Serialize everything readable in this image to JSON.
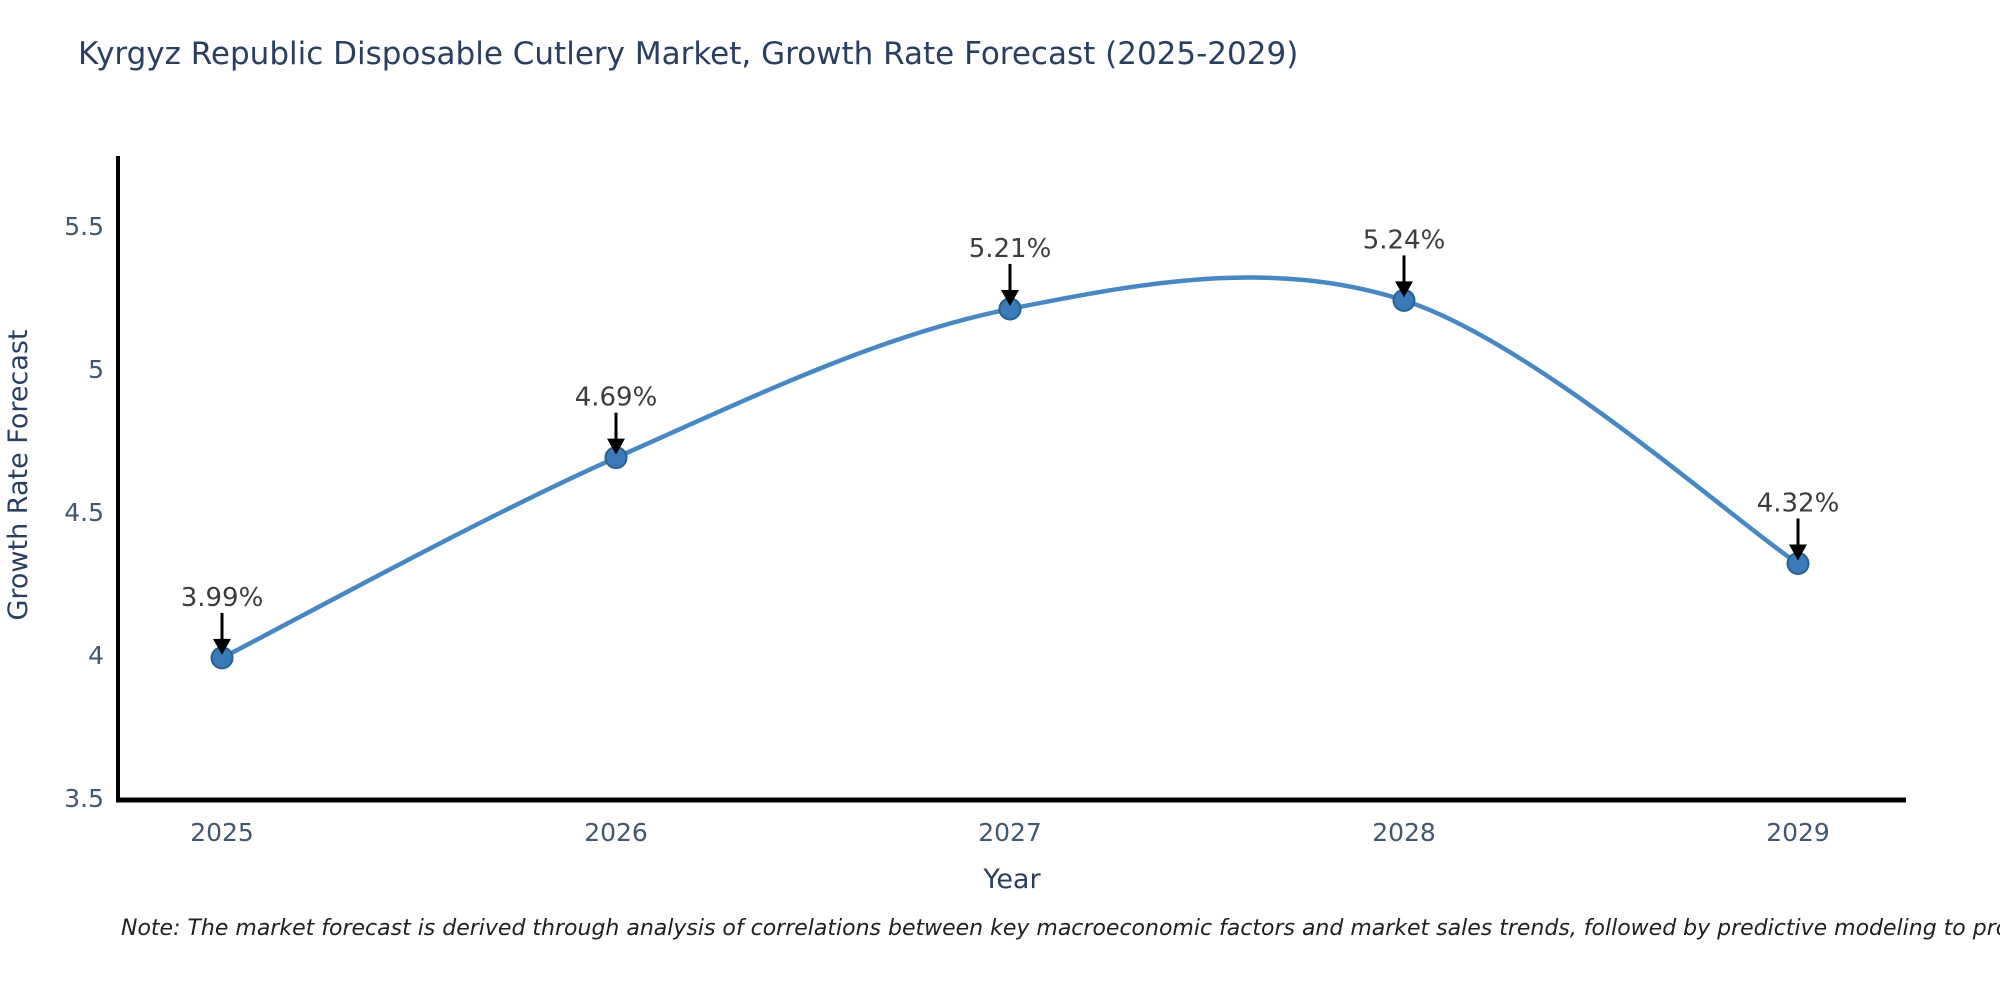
{
  "note": "Note: The market forecast is derived through analysis of correlations between key macroeconomic factors and market sales trends, followed by predictive modeling to project future sales",
  "chart_data": {
    "type": "line",
    "title": "Kyrgyz Republic Disposable Cutlery Market, Growth Rate Forecast (2025-2029)",
    "x": [
      2025,
      2026,
      2027,
      2028,
      2029
    ],
    "values": [
      3.99,
      4.69,
      5.21,
      5.24,
      4.32
    ],
    "point_labels": [
      "3.99%",
      "4.69%",
      "5.21%",
      "5.24%",
      "4.32%"
    ],
    "xlabel": "Year",
    "ylabel": "Growth Rate Forecast",
    "xticks": [
      "2025",
      "2026",
      "2027",
      "2028",
      "2029"
    ],
    "yticks": [
      3.5,
      4,
      4.5,
      5,
      5.5
    ],
    "ytick_labels": [
      "3.5",
      "4",
      "4.5",
      "5",
      "5.5"
    ],
    "ylim": [
      3.5,
      5.74
    ],
    "line_shape": "spline",
    "grid": false,
    "legend": "none",
    "markers": true,
    "annotations": "black-down-arrows-to-points",
    "colors": {
      "line": "#4788c3",
      "marker_fill": "#3a7ab8",
      "marker_edge": "#27618f",
      "axis_line": "#000000",
      "tick_label": "#42576e",
      "title": "#2a3f5f",
      "axis_title": "#2a3f5f",
      "annotation_text": "#3c3c3c",
      "annotation_arrow": "#000000",
      "background": "#ffffff"
    }
  }
}
